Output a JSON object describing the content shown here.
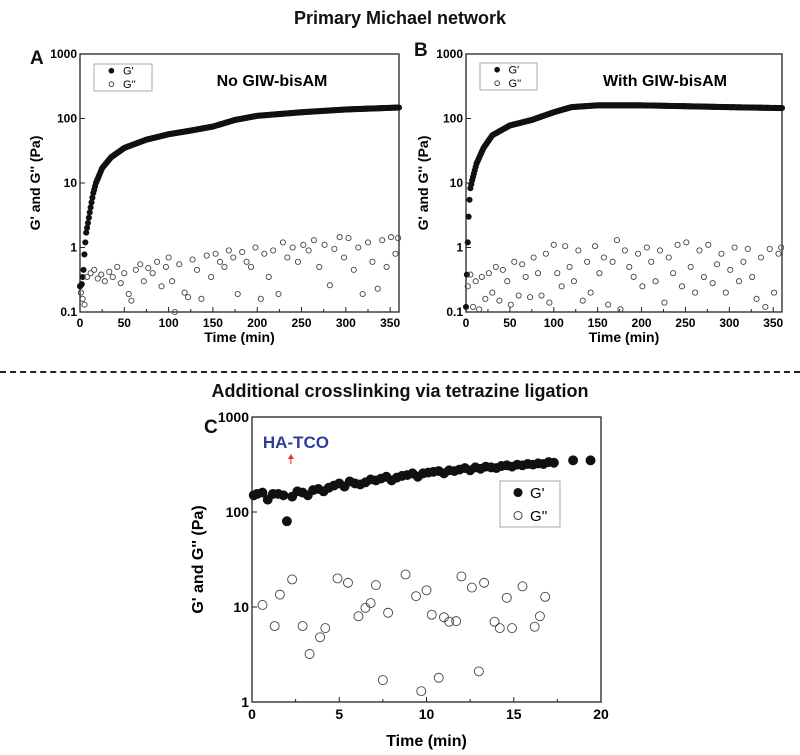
{
  "figure": {
    "top_title": "Primary Michael network",
    "bottom_title": "Additional crosslinking via tetrazine ligation"
  },
  "chart_data": [
    {
      "panel": "A",
      "type": "scatter",
      "title": "No GIW-bisAM",
      "xlabel": "Time (min)",
      "ylabel": "G' and G'' (Pa)",
      "xlim": [
        0,
        360
      ],
      "ylim": [
        0.1,
        1000
      ],
      "yscale": "log",
      "xticks": [
        0,
        50,
        100,
        150,
        200,
        250,
        300,
        350
      ],
      "yticks": [
        0.1,
        1,
        10,
        100,
        1000
      ],
      "ytick_labels": [
        "0.1",
        "1",
        "10",
        "100",
        "1000"
      ],
      "legend": {
        "position": "top-left",
        "entries": [
          "G'",
          "G''"
        ]
      },
      "series": [
        {
          "name": "G'",
          "marker": "filled-circle",
          "sampling_interval_min": 1,
          "x": [
            0,
            2,
            4,
            5,
            6,
            7,
            9,
            11,
            13,
            15,
            18,
            25,
            35,
            50,
            75,
            100,
            125,
            150,
            175,
            200,
            250,
            300,
            360
          ],
          "y": [
            0.25,
            0.27,
            0.45,
            0.78,
            1.2,
            1.7,
            2.4,
            3.5,
            5,
            7,
            10,
            17,
            25,
            35,
            47,
            57,
            65,
            75,
            95,
            110,
            125,
            138,
            148
          ]
        },
        {
          "name": "G''",
          "marker": "open-circle",
          "x": [
            1,
            3,
            5,
            8,
            12,
            16,
            20,
            24,
            28,
            33,
            37,
            42,
            46,
            50,
            55,
            58,
            63,
            68,
            72,
            77,
            82,
            87,
            92,
            97,
            100,
            104,
            107,
            112,
            118,
            122,
            127,
            132,
            137,
            143,
            148,
            153,
            158,
            163,
            168,
            173,
            178,
            183,
            188,
            193,
            198,
            204,
            208,
            213,
            218,
            224,
            229,
            234,
            240,
            246,
            252,
            258,
            264,
            270,
            276,
            282,
            287,
            293,
            298,
            303,
            309,
            314,
            319,
            325,
            330,
            336,
            341,
            346,
            351,
            356,
            359
          ],
          "y": [
            0.2,
            0.16,
            0.13,
            0.35,
            0.4,
            0.45,
            0.33,
            0.38,
            0.3,
            0.42,
            0.35,
            0.5,
            0.28,
            0.4,
            0.19,
            0.15,
            0.45,
            0.55,
            0.3,
            0.48,
            0.4,
            0.6,
            0.25,
            0.5,
            0.7,
            0.3,
            0.1,
            0.55,
            0.2,
            0.17,
            0.65,
            0.45,
            0.16,
            0.75,
            0.35,
            0.8,
            0.6,
            0.5,
            0.9,
            0.7,
            0.19,
            0.85,
            0.6,
            0.5,
            1.0,
            0.16,
            0.8,
            0.35,
            0.9,
            0.19,
            1.2,
            0.7,
            1.0,
            0.6,
            1.1,
            0.9,
            1.3,
            0.5,
            1.1,
            0.26,
            0.95,
            1.45,
            0.7,
            1.4,
            0.45,
            1.0,
            0.19,
            1.2,
            0.6,
            0.23,
            1.3,
            0.5,
            1.45,
            0.8,
            1.4
          ]
        }
      ]
    },
    {
      "panel": "B",
      "type": "scatter",
      "title": "With GIW-bisAM",
      "xlabel": "Time (min)",
      "ylabel": "G' and G'' (Pa)",
      "xlim": [
        0,
        360
      ],
      "ylim": [
        0.1,
        1000
      ],
      "yscale": "log",
      "xticks": [
        0,
        50,
        100,
        150,
        200,
        250,
        300,
        350
      ],
      "yticks": [
        0.1,
        1,
        10,
        100,
        1000
      ],
      "ytick_labels": [
        "0.1",
        "1",
        "10",
        "100",
        "1000"
      ],
      "legend": {
        "position": "top-left",
        "entries": [
          "G'",
          "G''"
        ]
      },
      "series": [
        {
          "name": "G'",
          "marker": "filled-circle",
          "sampling_interval_min": 1,
          "x": [
            0,
            2,
            3,
            4,
            5,
            7,
            9,
            12,
            20,
            30,
            50,
            75,
            100,
            120,
            150,
            200,
            250,
            300,
            360
          ],
          "y": [
            0.12,
            1.2,
            3,
            5.5,
            8.3,
            11,
            14,
            20,
            35,
            55,
            78,
            95,
            125,
            150,
            160,
            160,
            155,
            150,
            145
          ]
        },
        {
          "name": "G''",
          "marker": "open-circle",
          "x": [
            2,
            5,
            8,
            11,
            15,
            18,
            22,
            26,
            30,
            34,
            38,
            42,
            47,
            51,
            55,
            60,
            64,
            68,
            73,
            77,
            82,
            86,
            91,
            95,
            100,
            104,
            109,
            113,
            118,
            123,
            128,
            133,
            138,
            142,
            147,
            152,
            157,
            162,
            167,
            172,
            176,
            181,
            186,
            191,
            196,
            201,
            206,
            211,
            216,
            221,
            226,
            231,
            236,
            241,
            246,
            251,
            256,
            261,
            266,
            271,
            276,
            281,
            286,
            291,
            296,
            301,
            306,
            311,
            316,
            321,
            326,
            331,
            336,
            341,
            346,
            351,
            356,
            359
          ],
          "y": [
            0.25,
            0.38,
            0.12,
            0.3,
            0.11,
            0.35,
            0.16,
            0.4,
            0.2,
            0.5,
            0.15,
            0.45,
            0.3,
            0.13,
            0.6,
            0.18,
            0.55,
            0.35,
            0.17,
            0.7,
            0.4,
            0.18,
            0.8,
            0.14,
            1.1,
            0.4,
            0.25,
            1.05,
            0.5,
            0.3,
            0.9,
            0.15,
            0.6,
            0.2,
            1.05,
            0.4,
            0.7,
            0.13,
            0.6,
            1.3,
            0.11,
            0.9,
            0.5,
            0.35,
            0.8,
            0.25,
            1.0,
            0.6,
            0.3,
            0.9,
            0.14,
            0.7,
            0.4,
            1.1,
            0.25,
            1.2,
            0.5,
            0.2,
            0.9,
            0.35,
            1.1,
            0.28,
            0.55,
            0.8,
            0.2,
            0.45,
            1.0,
            0.3,
            0.6,
            0.95,
            0.35,
            0.16,
            0.7,
            0.12,
            0.95,
            0.2,
            0.8,
            1.0
          ]
        }
      ]
    },
    {
      "panel": "C",
      "type": "scatter",
      "title": "",
      "annotation": {
        "text": "HA-TCO",
        "x": 2,
        "color": "#2b3f99",
        "arrow_color": "#e8302a"
      },
      "xlabel": "Time (min)",
      "ylabel": "G' and G'' (Pa)",
      "xlim": [
        0,
        20
      ],
      "ylim": [
        1,
        1000
      ],
      "yscale": "log",
      "xticks": [
        0,
        5,
        10,
        15,
        20
      ],
      "yticks": [
        1,
        10,
        100,
        1000
      ],
      "ytick_labels": [
        "1",
        "10",
        "100",
        "1000"
      ],
      "legend": {
        "position": "center-right",
        "entries": [
          "G'",
          "G''"
        ]
      },
      "series": [
        {
          "name": "G'",
          "marker": "filled-circle",
          "x": [
            0.1,
            0.3,
            0.6,
            0.9,
            1.2,
            1.5,
            1.8,
            2.0,
            2.3,
            2.6,
            2.9,
            3.2,
            3.5,
            3.8,
            4.1,
            4.4,
            4.7,
            5.0,
            5.3,
            5.6,
            5.9,
            6.2,
            6.5,
            6.8,
            7.1,
            7.4,
            7.7,
            8.0,
            8.3,
            8.6,
            8.9,
            9.2,
            9.5,
            9.8,
            10.1,
            10.4,
            10.7,
            11.0,
            11.3,
            11.6,
            11.9,
            12.2,
            12.5,
            12.8,
            13.1,
            13.4,
            13.7,
            14.0,
            14.3,
            14.6,
            14.9,
            15.2,
            15.5,
            15.8,
            16.1,
            16.4,
            16.7,
            17.0,
            17.3,
            18.4,
            19.4
          ],
          "y": [
            150,
            155,
            160,
            135,
            155,
            155,
            150,
            80,
            145,
            165,
            160,
            150,
            170,
            175,
            165,
            180,
            190,
            200,
            185,
            210,
            200,
            195,
            205,
            220,
            215,
            225,
            235,
            215,
            230,
            240,
            245,
            255,
            235,
            255,
            260,
            265,
            270,
            255,
            275,
            270,
            280,
            290,
            275,
            295,
            285,
            300,
            295,
            290,
            305,
            310,
            300,
            315,
            310,
            320,
            315,
            325,
            320,
            335,
            330,
            350,
            350
          ]
        },
        {
          "name": "G''",
          "marker": "open-circle",
          "x": [
            0.6,
            1.3,
            1.6,
            2.3,
            2.9,
            3.3,
            3.9,
            4.2,
            4.9,
            5.5,
            6.1,
            6.5,
            6.8,
            7.1,
            7.5,
            7.8,
            8.8,
            9.4,
            9.7,
            10.0,
            10.3,
            10.7,
            11.0,
            11.3,
            11.7,
            12.0,
            12.6,
            13.0,
            13.3,
            13.9,
            14.2,
            14.6,
            14.9,
            15.5,
            16.2,
            16.5,
            16.8
          ],
          "y": [
            10.5,
            6.3,
            13.5,
            19.5,
            6.3,
            3.2,
            4.8,
            6.0,
            20,
            18,
            8.0,
            9.8,
            11,
            17,
            1.7,
            8.7,
            22,
            13,
            1.3,
            15,
            8.3,
            1.8,
            7.8,
            7.0,
            7.1,
            21,
            16,
            2.1,
            18,
            7.0,
            6.0,
            12.5,
            6.0,
            16.5,
            6.2,
            8.0,
            12.8
          ]
        }
      ]
    }
  ]
}
